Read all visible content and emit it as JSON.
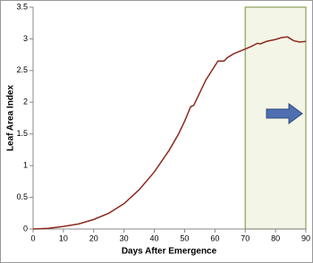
{
  "chart_data": {
    "type": "line",
    "x_label": "Days After Emergence",
    "y_label": "Leaf Area Index",
    "x": [
      0,
      5,
      10,
      15,
      20,
      25,
      30,
      35,
      40,
      45,
      48,
      50,
      52,
      53,
      55,
      57,
      59,
      61,
      63,
      64,
      66,
      68,
      70,
      72,
      74,
      75,
      77,
      80,
      82,
      84,
      85,
      86,
      88,
      90
    ],
    "series": [
      {
        "color": "#8b2a1f",
        "values": [
          0.0,
          0.01,
          0.04,
          0.08,
          0.15,
          0.25,
          0.4,
          0.62,
          0.9,
          1.25,
          1.5,
          1.7,
          1.93,
          1.95,
          2.15,
          2.35,
          2.5,
          2.65,
          2.65,
          2.7,
          2.76,
          2.8,
          2.84,
          2.88,
          2.93,
          2.92,
          2.96,
          2.99,
          3.02,
          3.03,
          3.0,
          2.97,
          2.95,
          2.96
        ]
      }
    ],
    "xlim": [
      0,
      90
    ],
    "xticks": [
      0,
      10,
      20,
      30,
      40,
      50,
      60,
      70,
      80,
      90
    ],
    "ylim": [
      0,
      3.5
    ],
    "yticks": [
      0,
      0.5,
      1,
      1.5,
      2,
      2.5,
      3,
      3.5
    ],
    "shaded_x": [
      70,
      90
    ],
    "shade_color": "#f3f5e6",
    "shade_border": "#8aa05a"
  }
}
